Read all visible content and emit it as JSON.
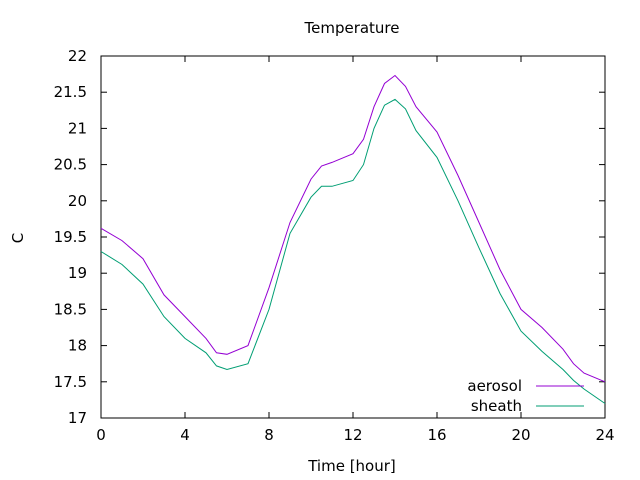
{
  "chart_data": {
    "type": "line",
    "title": "Temperature",
    "xlabel": "Time [hour]",
    "ylabel": "C",
    "xlim": [
      0,
      24
    ],
    "ylim": [
      17,
      22
    ],
    "xticks": [
      0,
      4,
      8,
      12,
      16,
      20,
      24
    ],
    "yticks": [
      17,
      17.5,
      18,
      18.5,
      19,
      19.5,
      20,
      20.5,
      21,
      21.5,
      22
    ],
    "x_tick_labels": [
      "0",
      "4",
      "8",
      "12",
      "16",
      "20",
      "24"
    ],
    "y_tick_labels": [
      "17",
      "17.5",
      "18",
      "18.5",
      "19",
      "19.5",
      "20",
      "20.5",
      "21",
      "21.5",
      "22"
    ],
    "grid": false,
    "legend_position": "bottom-right",
    "x": [
      0,
      1,
      2,
      3,
      4,
      5,
      5.5,
      6,
      7,
      8,
      9,
      10,
      10.5,
      11,
      12,
      12.5,
      13,
      13.5,
      14,
      14.5,
      15,
      16,
      17,
      18,
      19,
      20,
      21,
      22,
      22.5,
      23,
      24
    ],
    "series": [
      {
        "name": "aerosol",
        "color": "#9400d3",
        "values": [
          19.62,
          19.45,
          19.2,
          18.7,
          18.4,
          18.1,
          17.9,
          17.88,
          18.0,
          18.8,
          19.7,
          20.3,
          20.48,
          20.53,
          20.65,
          20.85,
          21.3,
          21.62,
          21.73,
          21.58,
          21.3,
          20.95,
          20.35,
          19.7,
          19.05,
          18.5,
          18.25,
          17.95,
          17.75,
          17.62,
          17.5
        ]
      },
      {
        "name": "sheath",
        "color": "#009e73",
        "values": [
          19.3,
          19.12,
          18.85,
          18.4,
          18.1,
          17.9,
          17.72,
          17.67,
          17.75,
          18.5,
          19.55,
          20.05,
          20.2,
          20.2,
          20.28,
          20.5,
          21.0,
          21.32,
          21.4,
          21.27,
          20.97,
          20.6,
          20.0,
          19.35,
          18.72,
          18.2,
          17.92,
          17.67,
          17.52,
          17.4,
          17.2
        ]
      }
    ]
  }
}
